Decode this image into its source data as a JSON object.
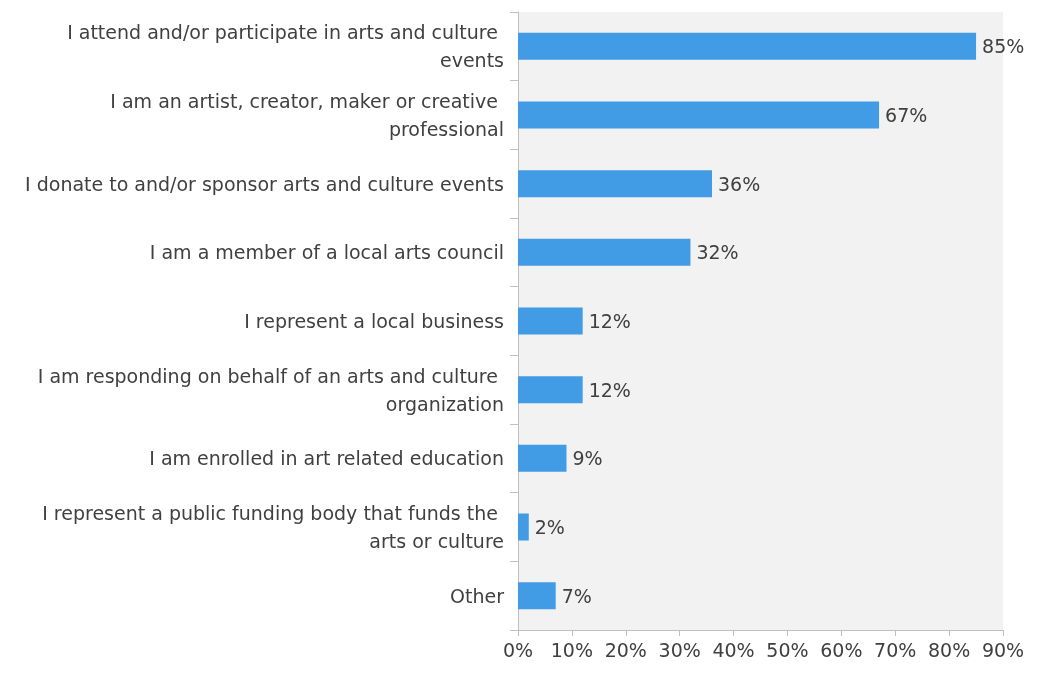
{
  "chart_data": {
    "type": "bar",
    "orientation": "horizontal",
    "categories": [
      "I attend and/or participate in arts and culture events",
      "I am an artist, creator, maker or creative professional",
      "I donate to and/or sponsor arts and culture events",
      "I am a member of a local arts council",
      "I represent a local business",
      "I am responding on behalf of an arts and culture organization",
      "I am enrolled in art related education",
      "I represent a public funding body that funds the arts or culture",
      "Other"
    ],
    "values": [
      85,
      67,
      36,
      32,
      12,
      12,
      9,
      2,
      7
    ],
    "value_labels": [
      "85%",
      "67%",
      "36%",
      "32%",
      "12%",
      "12%",
      "9%",
      "2%",
      "7%"
    ],
    "color": "#419be5",
    "xlim": [
      0,
      90
    ],
    "xticks": [
      {
        "value": 0,
        "label": "0%"
      },
      {
        "value": 10,
        "label": "10%"
      },
      {
        "value": 20,
        "label": "20%"
      },
      {
        "value": 30,
        "label": "30%"
      },
      {
        "value": 40,
        "label": "40%"
      },
      {
        "value": 50,
        "label": "50%"
      },
      {
        "value": 60,
        "label": "60%"
      },
      {
        "value": 70,
        "label": "70%"
      },
      {
        "value": 80,
        "label": "80%"
      },
      {
        "value": 90,
        "label": "90%"
      }
    ],
    "grid": false
  }
}
